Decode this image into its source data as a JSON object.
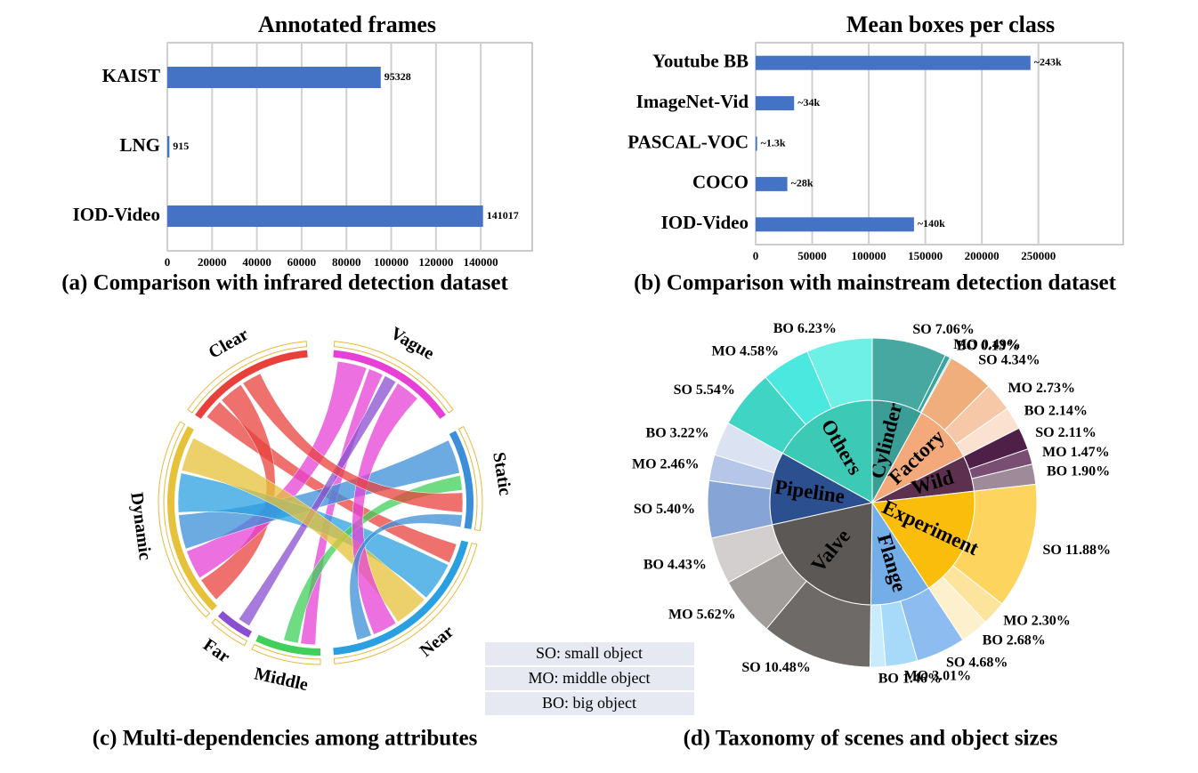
{
  "chart_data": [
    {
      "type": "bar",
      "title": "Annotated  frames",
      "caption": "(a) Comparison with infrared detection dataset",
      "categories": [
        "KAIST",
        "LNG",
        "IOD-Video"
      ],
      "values": [
        95328,
        915,
        141017
      ],
      "color": "#4472c4",
      "xlim": [
        0,
        163000
      ],
      "xticks": [
        0,
        20000,
        40000,
        60000,
        80000,
        100000,
        120000,
        140000
      ],
      "grid": true
    },
    {
      "type": "bar",
      "title": "Mean boxes per class",
      "caption": "(b) Comparison with mainstream detection dataset",
      "categories": [
        "Youtube BB",
        "ImageNet-Vid",
        "PASCAL-VOC",
        "COCO",
        "IOD-Video"
      ],
      "values": [
        243000,
        34000,
        1300,
        28000,
        140000
      ],
      "value_labels": [
        "~243k",
        "~34k",
        "~1.3k",
        "~28k",
        "~140k"
      ],
      "color": "#4472c4",
      "xlim": [
        0,
        325000
      ],
      "xticks": [
        0,
        50000,
        100000,
        150000,
        200000,
        250000
      ],
      "grid": true
    },
    {
      "type": "chord",
      "caption": "(c) Multi-dependencies among attributes",
      "labels": [
        "Clear",
        "Vague",
        "Static",
        "Near",
        "Middle",
        "Far",
        "Dynamic"
      ],
      "colors": [
        "#e8413c",
        "#e640d6",
        "#3a8fd8",
        "#2aa0e0",
        "#3fcf5a",
        "#8a4fd0",
        "#e6c23a"
      ]
    },
    {
      "type": "sunburst",
      "caption": "(d) Taxonomy of scenes and object sizes",
      "legend": [
        "SO: small object",
        "MO: middle object",
        "BO: big object"
      ],
      "categories": [
        {
          "name": "Cylinder",
          "color": "#3a9e97",
          "values": [
            7.06,
            0.49,
            0.13
          ],
          "value_labels": [
            "SO 7.06%",
            "MO 0.49%",
            "BO 0.13%"
          ],
          "colors": [
            "#47a8a2",
            "#36a4a0",
            "#5cbfb8"
          ]
        },
        {
          "name": "Factory",
          "color": "#f4a97a",
          "values": [
            4.34,
            2.73,
            2.14
          ],
          "value_labels": [
            "SO 4.34%",
            "MO 2.73%",
            "BO 2.14%"
          ],
          "colors": [
            "#f0ae7c",
            "#f6c8a8",
            "#fbe1d0"
          ]
        },
        {
          "name": "Wild",
          "color": "#5e3050",
          "values": [
            2.11,
            1.47,
            1.9
          ],
          "value_labels": [
            "SO 2.11%",
            "MO 1.47%",
            "BO 1.90%"
          ],
          "colors": [
            "#4e2048",
            "#7a4e72",
            "#9e8a98"
          ]
        },
        {
          "name": "Experiment",
          "color": "#fbbd0c",
          "values": [
            11.88,
            2.3,
            2.68
          ],
          "value_labels": [
            "SO 11.88%",
            "MO 2.30%",
            "BO 2.68%"
          ],
          "colors": [
            "#fcd45e",
            "#fde49c",
            "#fdf0cc"
          ]
        },
        {
          "name": "Flange",
          "color": "#74aee8",
          "values": [
            4.68,
            3.01,
            1.46
          ],
          "value_labels": [
            "SO 4.68%",
            "MO 3.01%",
            "BO 1.46%"
          ],
          "colors": [
            "#8cbcf0",
            "#a7daf8",
            "#c8ecfb"
          ]
        },
        {
          "name": "Valve",
          "color": "#5b5856",
          "values": [
            10.48,
            5.62,
            4.43
          ],
          "value_labels": [
            "SO 10.48%",
            "MO 5.62%",
            "BO 4.43%"
          ],
          "colors": [
            "#6e6a68",
            "#a19d9b",
            "#d2cfce"
          ]
        },
        {
          "name": "Pipeline",
          "color": "#2b4f8f",
          "values": [
            5.4,
            2.46,
            3.22
          ],
          "value_labels": [
            "SO 5.40%",
            "MO 2.46%",
            "BO 3.22%"
          ],
          "colors": [
            "#87a4d6",
            "#b5c6e8",
            "#dbe3f3"
          ]
        },
        {
          "name": "Others",
          "color": "#3cc9b6",
          "values": [
            5.54,
            4.58,
            6.23
          ],
          "value_labels": [
            "SO 5.54%",
            "MO 4.58%",
            "BO 6.23%"
          ],
          "colors": [
            "#3fd4c4",
            "#4be8e0",
            "#6ff0e6"
          ]
        }
      ]
    }
  ]
}
